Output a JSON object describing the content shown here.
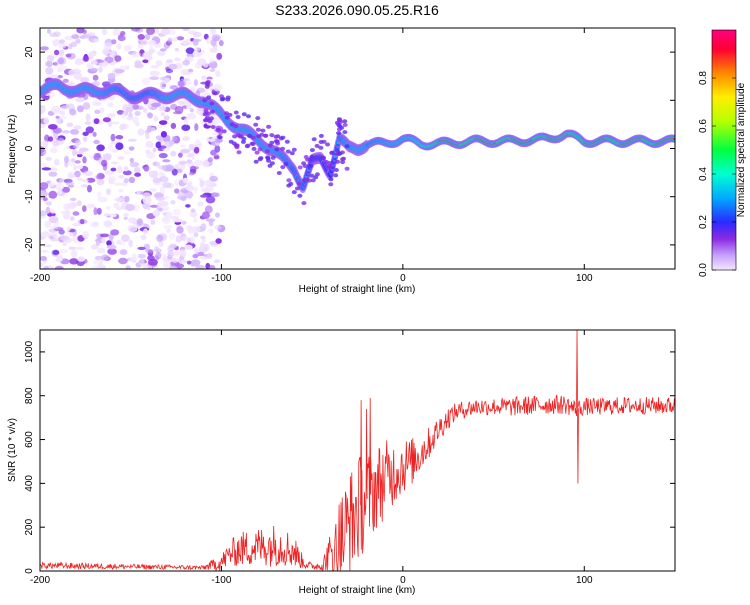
{
  "title": "S233.2026.090.05.25.R16",
  "chart_data": [
    {
      "type": "heatmap",
      "xlabel": "Height of straight line (km)",
      "ylabel": "Frequency (Hz)",
      "xlim": [
        -200,
        150
      ],
      "ylim": [
        -25,
        25
      ],
      "xticks": [
        -200,
        -100,
        0,
        100
      ],
      "yticks": [
        20,
        10,
        0,
        -10,
        -20
      ],
      "grid": false,
      "colorbar": {
        "label": "Normalized spectral amplitude",
        "range": [
          0,
          1
        ],
        "ticks": [
          0.0,
          0.2,
          0.4,
          0.6,
          0.8
        ],
        "colors": [
          "#f4e6ff",
          "#c7a3ff",
          "#8a2be2",
          "#2a2aff",
          "#00d8ff",
          "#00ff60",
          "#b8ff00",
          "#ffee00",
          "#ff8800",
          "#ff0033",
          "#ff0080"
        ]
      },
      "ridge": {
        "x": [
          -200,
          -190,
          -180,
          -170,
          -160,
          -150,
          -140,
          -130,
          -120,
          -110,
          -100,
          -90,
          -80,
          -70,
          -60,
          -55,
          -50,
          -45,
          -40,
          -35,
          -30,
          -25,
          -20,
          -10,
          0,
          10,
          20,
          40,
          60,
          80,
          90,
          100,
          120,
          150
        ],
        "freq": [
          12,
          13,
          12,
          12,
          12,
          11,
          11,
          11,
          11,
          10,
          7,
          4,
          2,
          -1,
          -4,
          -8,
          -3,
          -2,
          -5,
          2,
          0,
          0,
          1,
          1,
          2,
          1,
          1,
          1.5,
          1.5,
          2,
          3,
          1.5,
          1.5,
          1.5
        ],
        "amplitude": [
          0.3,
          0.35,
          0.3,
          0.3,
          0.28,
          0.25,
          0.25,
          0.3,
          0.35,
          0.35,
          0.3,
          0.3,
          0.3,
          0.3,
          0.25,
          0.25,
          0.2,
          0.2,
          0.2,
          0.25,
          0.3,
          0.4,
          0.45,
          0.55,
          0.6,
          0.7,
          0.9,
          0.95,
          0.95,
          0.9,
          0.85,
          0.9,
          0.9,
          0.9
        ]
      },
      "noise_extent_km": [
        -200,
        -105
      ]
    },
    {
      "type": "line",
      "xlabel": "Height of straight line (km)",
      "ylabel": "SNR (10 * v/v)",
      "xlim": [
        -200,
        150
      ],
      "ylim": [
        0,
        1100
      ],
      "xticks": [
        -200,
        -100,
        0,
        100
      ],
      "yticks": [
        0,
        200,
        400,
        600,
        800,
        1000
      ],
      "color": "#ee2222",
      "series_profile": {
        "x": [
          -200,
          -150,
          -110,
          -100,
          -95,
          -90,
          -80,
          -70,
          -65,
          -60,
          -55,
          -50,
          -45,
          -40,
          -35,
          -30,
          -25,
          -20,
          -15,
          -10,
          -5,
          0,
          5,
          10,
          15,
          20,
          25,
          30,
          40,
          50,
          60,
          70,
          80,
          90,
          95,
          100,
          110,
          120,
          130,
          140,
          150
        ],
        "mean": [
          25,
          20,
          15,
          40,
          80,
          100,
          110,
          120,
          110,
          90,
          40,
          20,
          25,
          60,
          130,
          200,
          280,
          330,
          380,
          420,
          450,
          480,
          500,
          540,
          590,
          650,
          700,
          730,
          750,
          750,
          750,
          755,
          760,
          760,
          740,
          750,
          750,
          755,
          755,
          755,
          755
        ],
        "spread": [
          15,
          12,
          10,
          40,
          60,
          80,
          90,
          100,
          90,
          80,
          30,
          15,
          25,
          120,
          220,
          250,
          250,
          220,
          200,
          180,
          150,
          130,
          110,
          90,
          70,
          60,
          50,
          40,
          40,
          40,
          45,
          45,
          45,
          45,
          40,
          40,
          40,
          40,
          40,
          40,
          40
        ],
        "spikes": [
          {
            "x": -23,
            "y": 780
          },
          {
            "x": -18,
            "y": 790
          },
          {
            "x": -20,
            "y": 740
          },
          {
            "x": 96,
            "y": 1100
          },
          {
            "x": 96.5,
            "y": 400
          }
        ]
      }
    }
  ]
}
